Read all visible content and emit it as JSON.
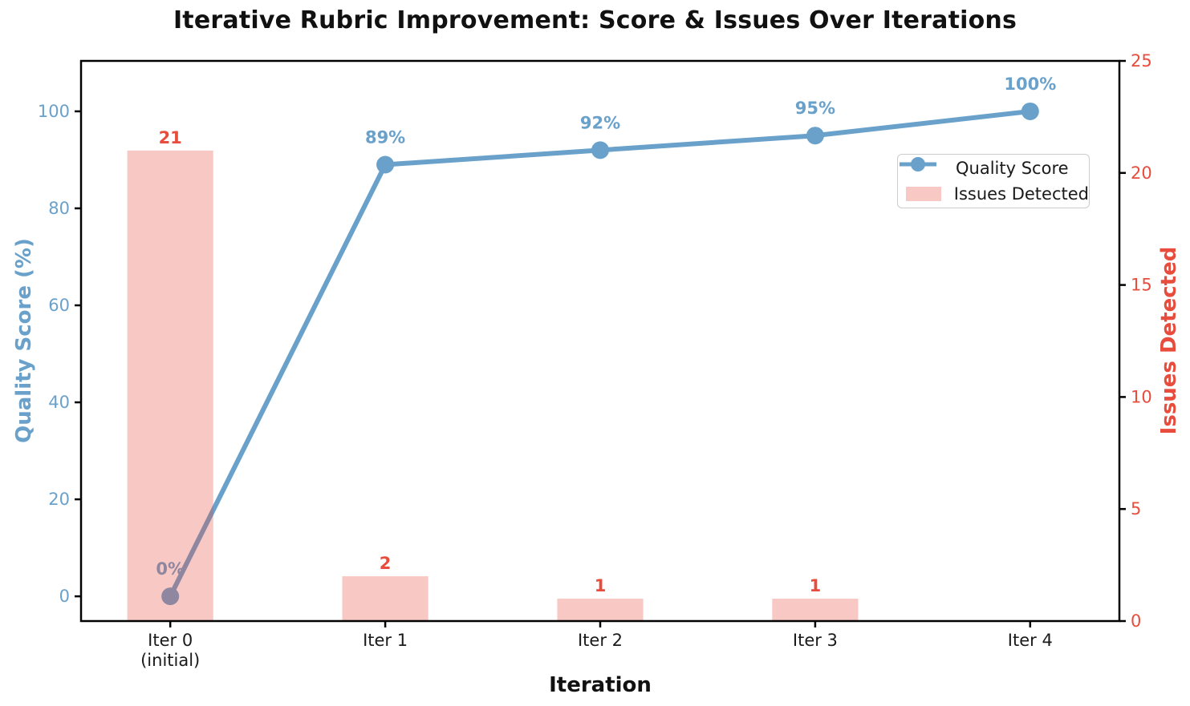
{
  "title": "Iterative Rubric Improvement: Score & Issues Over Iterations",
  "colors": {
    "blue": "#69a1cb",
    "red": "#e74c3c",
    "bar_fill": "rgba(231,76,60,0.30)",
    "spine": "#000000",
    "x_tick_label": "#1a1a1a",
    "legend_border": "#cccccc"
  },
  "chart_data": {
    "type": "line+bar (dual axis)",
    "title": "Iterative Rubric Improvement: Score & Issues Over Iterations",
    "xlabel": "Iteration",
    "ylabel_left": "Quality Score (%)",
    "ylabel_right": "Issues Detected",
    "categories": [
      "Iter 0",
      "Iter 1",
      "Iter 2",
      "Iter 3",
      "Iter 4"
    ],
    "category_sublabels": [
      "(initial)",
      "",
      "",
      "",
      ""
    ],
    "series": [
      {
        "name": "Quality Score",
        "type": "line",
        "axis": "left",
        "values": [
          0,
          89,
          92,
          95,
          100
        ],
        "point_labels": [
          "0%",
          "89%",
          "92%",
          "95%",
          "100%"
        ]
      },
      {
        "name": "Issues Detected",
        "type": "bar",
        "axis": "right",
        "values": [
          21,
          2,
          1,
          1,
          0
        ],
        "point_labels": [
          "21",
          "2",
          "1",
          "1",
          ""
        ]
      }
    ],
    "left_ticks": [
      0,
      20,
      40,
      60,
      80,
      100
    ],
    "right_ticks": [
      0,
      5,
      10,
      15,
      20,
      25
    ],
    "ylim_left": [
      -5.1,
      110.4
    ],
    "ylim_right": [
      0,
      25
    ],
    "grid": false,
    "legend_position": "upper right inside"
  },
  "legend": {
    "items": [
      {
        "label": "Quality Score",
        "swatch": "line-marker"
      },
      {
        "label": "Issues Detected",
        "swatch": "bar-patch"
      }
    ]
  }
}
